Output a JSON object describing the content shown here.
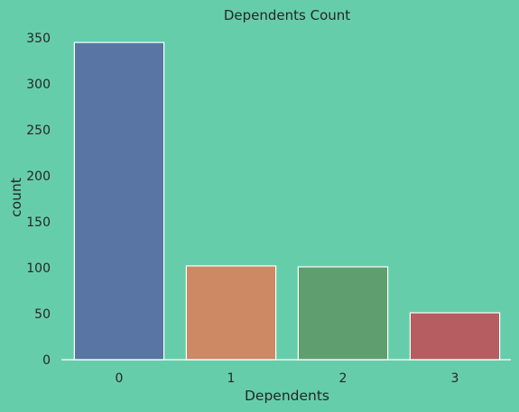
{
  "chart_data": {
    "type": "bar",
    "title": "Dependents Count",
    "xlabel": "Dependents",
    "ylabel": "count",
    "categories": [
      "0",
      "1",
      "2",
      "3"
    ],
    "values": [
      345,
      102,
      101,
      51
    ],
    "ylim": [
      0,
      350
    ],
    "yticks": [
      "0",
      "50",
      "100",
      "150",
      "200",
      "250",
      "300",
      "350"
    ],
    "colors": [
      "#5875A4",
      "#CC8963",
      "#5F9E6E",
      "#B55D60"
    ],
    "bar_edge_color": "#FFFFFF",
    "background_color": "#66CDAA",
    "grid": false,
    "legend": "none"
  }
}
